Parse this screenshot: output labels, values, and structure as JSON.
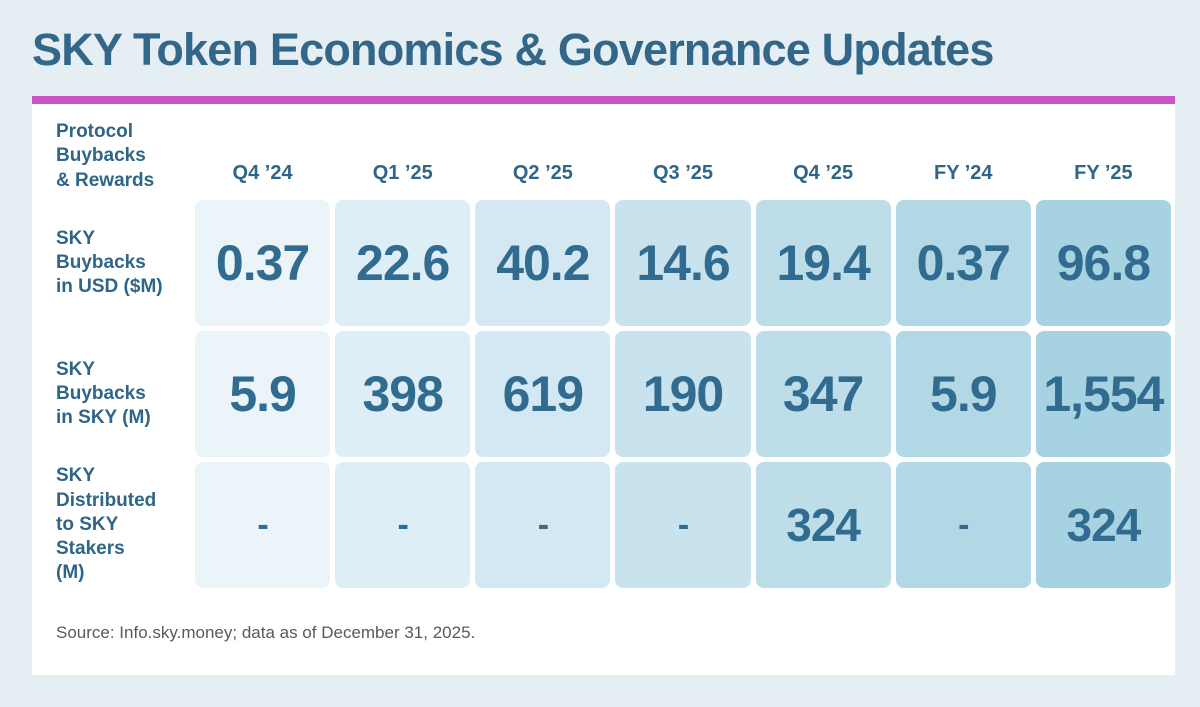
{
  "page": {
    "title": "SKY Token Economics & Governance Updates",
    "source": "Source: Info.sky.money; data as of December 31, 2025.",
    "accent_color": "#cb54c8",
    "background_color": "#e5eef3",
    "card_color": "#ffffff",
    "heading_text_color": "#2f6587",
    "value_text_color": "#316c90"
  },
  "chart_data": {
    "type": "table",
    "title": "SKY Token Economics & Governance Updates",
    "corner_label": "Protocol\nBuybacks\n& Rewards",
    "columns": [
      "Q4 ’24",
      "Q1 ’25",
      "Q2 ’25",
      "Q3 ’25",
      "Q4 ’25",
      "FY ’24",
      "FY ’25"
    ],
    "column_colors": [
      "#eaf4f9",
      "#deeef6",
      "#d3e8f2",
      "#c8e3ee",
      "#bddde9",
      "#b2d8e6",
      "#a6d2e2"
    ],
    "rows": [
      {
        "label": "SKY\nBuybacks\nin USD ($M)",
        "values": [
          "0.37",
          "22.6",
          "40.2",
          "14.6",
          "19.4",
          "0.37",
          "96.8"
        ]
      },
      {
        "label": "SKY\nBuybacks\nin SKY (M)",
        "values": [
          "5.9",
          "398",
          "619",
          "190",
          "347",
          "5.9",
          "1,554"
        ]
      },
      {
        "label": "SKY\nDistributed\nto SKY Stakers\n(M)",
        "values": [
          "-",
          "-",
          "-",
          "-",
          "324",
          "-",
          "324"
        ]
      }
    ],
    "layout": {
      "legend": false,
      "grid": false,
      "note": "columns shade progressively darker left to right"
    }
  }
}
